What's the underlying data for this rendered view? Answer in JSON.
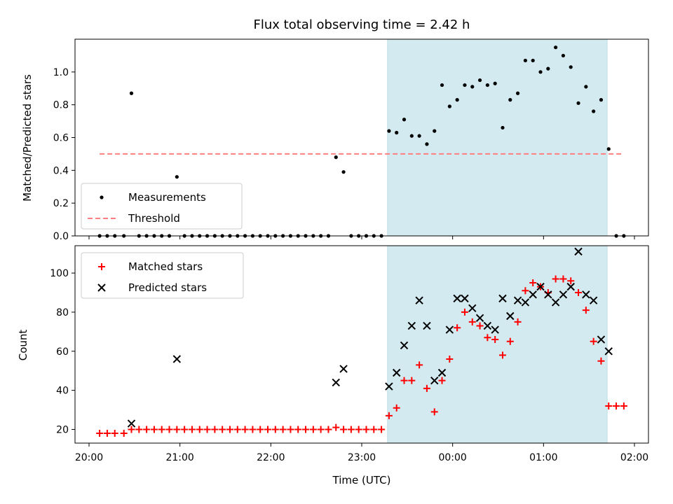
{
  "chart_data": [
    {
      "type": "scatter",
      "title": "Flux total observing time = 2.42 h",
      "ylabel": "Matched/Predicted stars",
      "xlabel": "",
      "xlim": [
        "20:00",
        "02:00"
      ],
      "ylim": [
        0,
        1.2
      ],
      "yticks": [
        "0.0",
        "0.2",
        "0.4",
        "0.6",
        "0.8",
        "1.0"
      ],
      "shaded_span": [
        "23:17",
        "01:42"
      ],
      "shaded_color": "#d3eaf0",
      "grid": false,
      "legend": "lower-left",
      "series": [
        {
          "name": "Measurements",
          "marker": "dot",
          "color": "#000000",
          "points": [
            [
              "20:07",
              0
            ],
            [
              "20:12",
              0
            ],
            [
              "20:17",
              0
            ],
            [
              "20:23",
              0
            ],
            [
              "20:28",
              0.87
            ],
            [
              "20:33",
              0
            ],
            [
              "20:38",
              0
            ],
            [
              "20:43",
              0
            ],
            [
              "20:48",
              0
            ],
            [
              "20:53",
              0
            ],
            [
              "20:58",
              0.36
            ],
            [
              "21:03",
              0
            ],
            [
              "21:08",
              0
            ],
            [
              "21:13",
              0
            ],
            [
              "21:18",
              0
            ],
            [
              "21:23",
              0
            ],
            [
              "21:28",
              0
            ],
            [
              "21:33",
              0
            ],
            [
              "21:38",
              0
            ],
            [
              "21:43",
              0
            ],
            [
              "21:48",
              0
            ],
            [
              "21:53",
              0
            ],
            [
              "21:58",
              0
            ],
            [
              "22:03",
              0
            ],
            [
              "22:08",
              0
            ],
            [
              "22:13",
              0
            ],
            [
              "22:18",
              0
            ],
            [
              "22:23",
              0
            ],
            [
              "22:28",
              0
            ],
            [
              "22:33",
              0
            ],
            [
              "22:38",
              0
            ],
            [
              "22:43",
              0.48
            ],
            [
              "22:48",
              0.39
            ],
            [
              "22:53",
              0
            ],
            [
              "22:58",
              0
            ],
            [
              "23:03",
              0
            ],
            [
              "23:08",
              0
            ],
            [
              "23:13",
              0
            ],
            [
              "23:18",
              0.64
            ],
            [
              "23:23",
              0.63
            ],
            [
              "23:28",
              0.71
            ],
            [
              "23:33",
              0.61
            ],
            [
              "23:38",
              0.61
            ],
            [
              "23:43",
              0.56
            ],
            [
              "23:48",
              0.64
            ],
            [
              "23:53",
              0.92
            ],
            [
              "23:58",
              0.79
            ],
            [
              "00:03",
              0.83
            ],
            [
              "00:08",
              0.92
            ],
            [
              "00:13",
              0.91
            ],
            [
              "00:18",
              0.95
            ],
            [
              "00:23",
              0.92
            ],
            [
              "00:28",
              0.93
            ],
            [
              "00:33",
              0.66
            ],
            [
              "00:38",
              0.83
            ],
            [
              "00:43",
              0.87
            ],
            [
              "00:48",
              1.07
            ],
            [
              "00:53",
              1.07
            ],
            [
              "00:58",
              1.0
            ],
            [
              "01:03",
              1.02
            ],
            [
              "01:08",
              1.15
            ],
            [
              "01:13",
              1.1
            ],
            [
              "01:18",
              1.03
            ],
            [
              "01:23",
              0.81
            ],
            [
              "01:28",
              0.91
            ],
            [
              "01:33",
              0.76
            ],
            [
              "01:38",
              0.83
            ],
            [
              "01:43",
              0.53
            ],
            [
              "01:48",
              0
            ],
            [
              "01:53",
              0
            ]
          ]
        },
        {
          "name": "Threshold",
          "style": "dashed",
          "color": "#ff7f7f",
          "points": [
            [
              "20:07",
              0.5
            ],
            [
              "01:53",
              0.5
            ]
          ]
        }
      ]
    },
    {
      "type": "scatter",
      "title": "",
      "ylabel": "Count",
      "xlabel": "Time (UTC)",
      "xlim": [
        "20:00",
        "02:00"
      ],
      "xticks": [
        "20:00",
        "21:00",
        "22:00",
        "23:00",
        "00:00",
        "01:00",
        "02:00"
      ],
      "ylim": [
        13,
        114
      ],
      "yticks": [
        "20",
        "40",
        "60",
        "80",
        "100"
      ],
      "shaded_span": [
        "23:17",
        "01:42"
      ],
      "shaded_color": "#d3eaf0",
      "grid": false,
      "legend": "upper-left",
      "series": [
        {
          "name": "Matched stars",
          "marker": "plus",
          "color": "#ff0000",
          "points": [
            [
              "20:07",
              18
            ],
            [
              "20:12",
              18
            ],
            [
              "20:17",
              18
            ],
            [
              "20:23",
              18
            ],
            [
              "20:28",
              20
            ],
            [
              "20:33",
              20
            ],
            [
              "20:38",
              20
            ],
            [
              "20:43",
              20
            ],
            [
              "20:48",
              20
            ],
            [
              "20:53",
              20
            ],
            [
              "20:58",
              20
            ],
            [
              "21:03",
              20
            ],
            [
              "21:08",
              20
            ],
            [
              "21:13",
              20
            ],
            [
              "21:18",
              20
            ],
            [
              "21:23",
              20
            ],
            [
              "21:28",
              20
            ],
            [
              "21:33",
              20
            ],
            [
              "21:38",
              20
            ],
            [
              "21:43",
              20
            ],
            [
              "21:48",
              20
            ],
            [
              "21:53",
              20
            ],
            [
              "21:58",
              20
            ],
            [
              "22:03",
              20
            ],
            [
              "22:08",
              20
            ],
            [
              "22:13",
              20
            ],
            [
              "22:18",
              20
            ],
            [
              "22:23",
              20
            ],
            [
              "22:28",
              20
            ],
            [
              "22:33",
              20
            ],
            [
              "22:38",
              20
            ],
            [
              "22:43",
              21
            ],
            [
              "22:48",
              20
            ],
            [
              "22:53",
              20
            ],
            [
              "22:58",
              20
            ],
            [
              "23:03",
              20
            ],
            [
              "23:08",
              20
            ],
            [
              "23:13",
              20
            ],
            [
              "23:18",
              27
            ],
            [
              "23:23",
              31
            ],
            [
              "23:28",
              45
            ],
            [
              "23:33",
              45
            ],
            [
              "23:38",
              53
            ],
            [
              "23:43",
              41
            ],
            [
              "23:48",
              29
            ],
            [
              "23:53",
              45
            ],
            [
              "23:58",
              56
            ],
            [
              "00:03",
              72
            ],
            [
              "00:08",
              80
            ],
            [
              "00:13",
              75
            ],
            [
              "00:18",
              73
            ],
            [
              "00:23",
              67
            ],
            [
              "00:28",
              66
            ],
            [
              "00:33",
              58
            ],
            [
              "00:38",
              65
            ],
            [
              "00:43",
              75
            ],
            [
              "00:48",
              91
            ],
            [
              "00:53",
              95
            ],
            [
              "00:58",
              93
            ],
            [
              "01:03",
              90
            ],
            [
              "01:08",
              97
            ],
            [
              "01:13",
              97
            ],
            [
              "01:18",
              96
            ],
            [
              "01:23",
              90
            ],
            [
              "01:28",
              81
            ],
            [
              "01:33",
              65
            ],
            [
              "01:38",
              55
            ],
            [
              "01:43",
              32
            ],
            [
              "01:48",
              32
            ],
            [
              "01:53",
              32
            ]
          ]
        },
        {
          "name": "Predicted stars",
          "marker": "x",
          "color": "#000000",
          "points": [
            [
              "20:28",
              23
            ],
            [
              "20:58",
              56
            ],
            [
              "22:43",
              44
            ],
            [
              "22:48",
              51
            ],
            [
              "23:18",
              42
            ],
            [
              "23:23",
              49
            ],
            [
              "23:28",
              63
            ],
            [
              "23:33",
              73
            ],
            [
              "23:38",
              86
            ],
            [
              "23:43",
              73
            ],
            [
              "23:48",
              45
            ],
            [
              "23:53",
              49
            ],
            [
              "23:58",
              71
            ],
            [
              "00:03",
              87
            ],
            [
              "00:08",
              87
            ],
            [
              "00:13",
              82
            ],
            [
              "00:18",
              77
            ],
            [
              "00:23",
              73
            ],
            [
              "00:28",
              71
            ],
            [
              "00:33",
              87
            ],
            [
              "00:38",
              78
            ],
            [
              "00:43",
              86
            ],
            [
              "00:48",
              85
            ],
            [
              "00:53",
              89
            ],
            [
              "00:58",
              93
            ],
            [
              "01:03",
              89
            ],
            [
              "01:08",
              85
            ],
            [
              "01:13",
              89
            ],
            [
              "01:18",
              93
            ],
            [
              "01:23",
              111
            ],
            [
              "01:28",
              89
            ],
            [
              "01:33",
              86
            ],
            [
              "01:38",
              66
            ],
            [
              "01:43",
              60
            ]
          ]
        }
      ]
    }
  ]
}
